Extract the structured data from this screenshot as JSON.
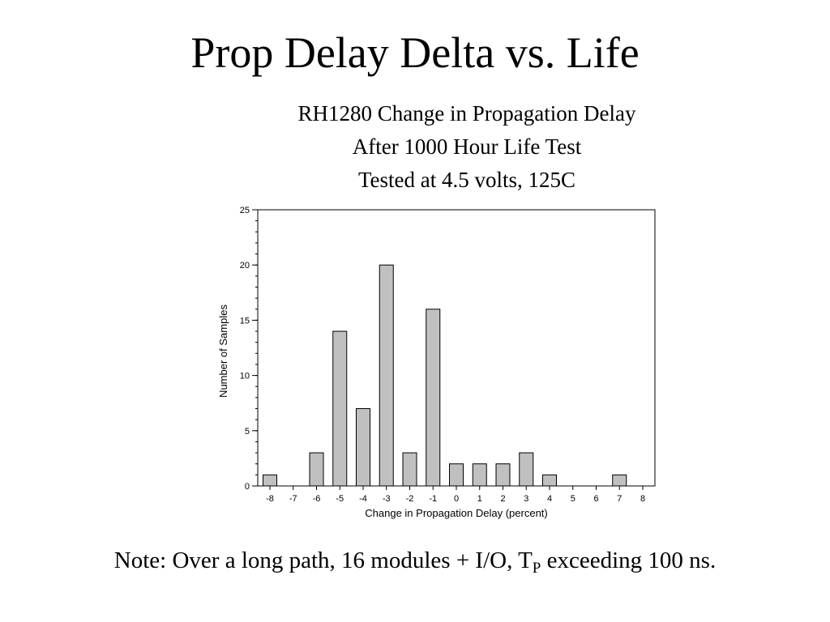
{
  "slide": {
    "title": "Prop Delay Delta vs. Life",
    "note": {
      "prefix": "Note: Over a long path, 16 modules + I/O, T",
      "subscript": "P",
      "suffix": " exceeding 100 ns."
    }
  },
  "chart_data": {
    "type": "bar",
    "title_lines": [
      "RH1280 Change in Propagation Delay",
      "After 1000 Hour Life Test",
      "Tested at 4.5 volts, 125C"
    ],
    "xlabel": "Change in Propagation Delay (percent)",
    "ylabel": "Number of Samples",
    "categories": [
      "-8",
      "-7",
      "-6",
      "-5",
      "-4",
      "-3",
      "-2",
      "-1",
      "0",
      "1",
      "2",
      "3",
      "4",
      "5",
      "6",
      "7",
      "8"
    ],
    "values": [
      1,
      0,
      3,
      14,
      7,
      20,
      3,
      16,
      2,
      2,
      2,
      3,
      1,
      0,
      0,
      1,
      0
    ],
    "ylim": [
      0,
      25
    ],
    "yticks": [
      0,
      5,
      10,
      15,
      20,
      25
    ],
    "y_minor_step": 1,
    "grid": false,
    "colors": {
      "bar_fill": "#c0c0c0",
      "bar_stroke": "#000000",
      "axis": "#000000"
    }
  }
}
